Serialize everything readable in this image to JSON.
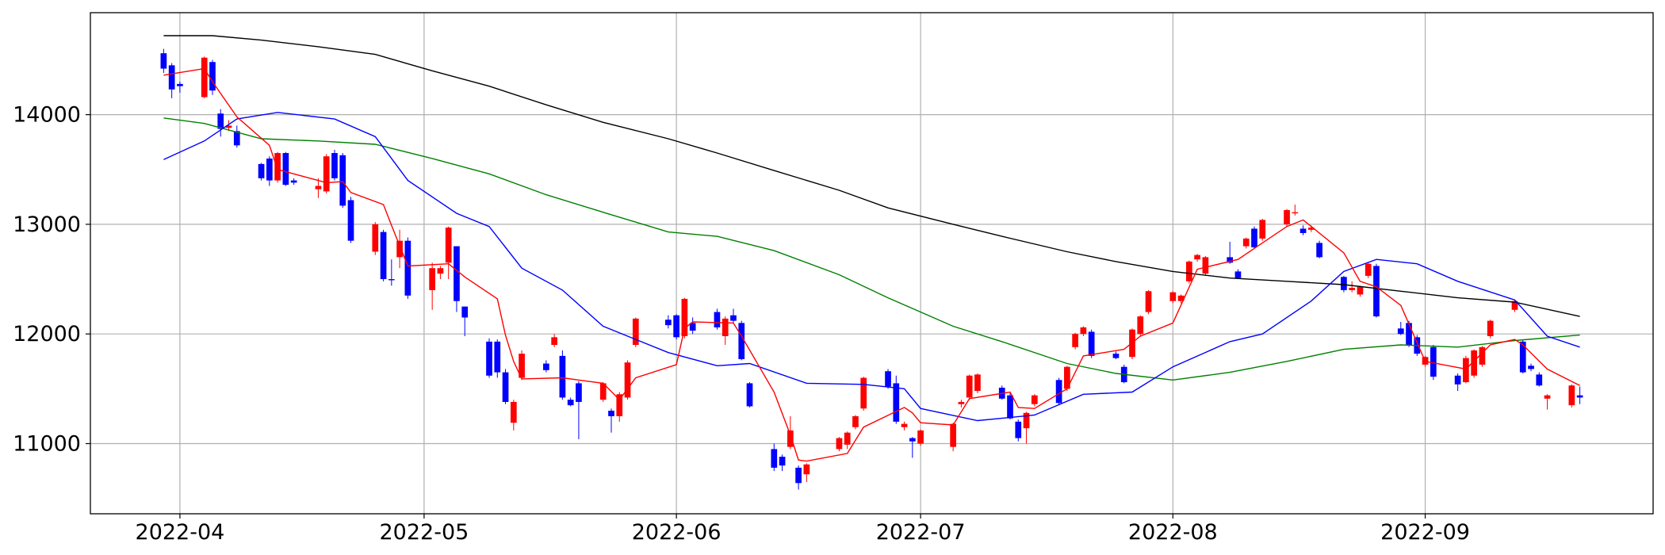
{
  "chart_data": {
    "type": "candlestick",
    "x": [
      "2022-03-30",
      "2022-03-31",
      "2022-04-01",
      "2022-04-04",
      "2022-04-05",
      "2022-04-06",
      "2022-04-07",
      "2022-04-08",
      "2022-04-11",
      "2022-04-12",
      "2022-04-13",
      "2022-04-14",
      "2022-04-15",
      "2022-04-18",
      "2022-04-19",
      "2022-04-20",
      "2022-04-21",
      "2022-04-22",
      "2022-04-25",
      "2022-04-26",
      "2022-04-27",
      "2022-04-28",
      "2022-04-29",
      "2022-05-02",
      "2022-05-03",
      "2022-05-04",
      "2022-05-05",
      "2022-05-06",
      "2022-05-09",
      "2022-05-10",
      "2022-05-11",
      "2022-05-12",
      "2022-05-13",
      "2022-05-16",
      "2022-05-17",
      "2022-05-18",
      "2022-05-19",
      "2022-05-20",
      "2022-05-23",
      "2022-05-24",
      "2022-05-25",
      "2022-05-26",
      "2022-05-27",
      "2022-05-31",
      "2022-06-01",
      "2022-06-02",
      "2022-06-03",
      "2022-06-06",
      "2022-06-07",
      "2022-06-08",
      "2022-06-09",
      "2022-06-10",
      "2022-06-13",
      "2022-06-14",
      "2022-06-15",
      "2022-06-16",
      "2022-06-17",
      "2022-06-21",
      "2022-06-22",
      "2022-06-23",
      "2022-06-24",
      "2022-06-27",
      "2022-06-28",
      "2022-06-29",
      "2022-06-30",
      "2022-07-01",
      "2022-07-05",
      "2022-07-06",
      "2022-07-07",
      "2022-07-08",
      "2022-07-11",
      "2022-07-12",
      "2022-07-13",
      "2022-07-14",
      "2022-07-15",
      "2022-07-18",
      "2022-07-19",
      "2022-07-20",
      "2022-07-21",
      "2022-07-22",
      "2022-07-25",
      "2022-07-26",
      "2022-07-27",
      "2022-07-28",
      "2022-07-29",
      "2022-08-01",
      "2022-08-02",
      "2022-08-03",
      "2022-08-04",
      "2022-08-05",
      "2022-08-08",
      "2022-08-09",
      "2022-08-10",
      "2022-08-11",
      "2022-08-12",
      "2022-08-15",
      "2022-08-16",
      "2022-08-17",
      "2022-08-18",
      "2022-08-19",
      "2022-08-22",
      "2022-08-23",
      "2022-08-24",
      "2022-08-25",
      "2022-08-26",
      "2022-08-29",
      "2022-08-30",
      "2022-08-31",
      "2022-09-01",
      "2022-09-02",
      "2022-09-05",
      "2022-09-06",
      "2022-09-07",
      "2022-09-08",
      "2022-09-09",
      "2022-09-12",
      "2022-09-13",
      "2022-09-14",
      "2022-09-15",
      "2022-09-16",
      "2022-09-19",
      "2022-09-20"
    ],
    "open": [
      14560,
      14450,
      14280,
      14160,
      14480,
      14010,
      13880,
      13850,
      13550,
      13600,
      13400,
      13650,
      13400,
      13320,
      13300,
      13650,
      13630,
      13220,
      12750,
      12930,
      12500,
      12700,
      12850,
      12400,
      12550,
      12650,
      12800,
      12250,
      11930,
      11930,
      11650,
      11190,
      11600,
      11730,
      11900,
      11800,
      11400,
      11550,
      11400,
      11300,
      11250,
      11420,
      11900,
      12130,
      12170,
      11980,
      12100,
      12200,
      11980,
      12170,
      12100,
      11550,
      10950,
      10880,
      10970,
      10780,
      10720,
      10950,
      10990,
      11150,
      11320,
      11660,
      11550,
      11150,
      11050,
      11000,
      10970,
      11360,
      11420,
      11480,
      11510,
      11440,
      11200,
      11140,
      11360,
      11580,
      11500,
      11880,
      12000,
      12020,
      11820,
      11700,
      11790,
      12000,
      12200,
      12300,
      12300,
      12480,
      12680,
      12550,
      12700,
      12570,
      12800,
      12960,
      12870,
      13000,
      13100,
      12960,
      12950,
      12830,
      12520,
      12400,
      12360,
      12530,
      12620,
      12050,
      12100,
      11970,
      11720,
      11880,
      11620,
      11560,
      11620,
      11720,
      11980,
      12220,
      11930,
      11710,
      11630,
      11410,
      11350,
      11440
    ],
    "high": [
      14600,
      14470,
      14300,
      14530,
      14500,
      14050,
      13950,
      13900,
      13560,
      13620,
      13660,
      13660,
      13420,
      13420,
      13640,
      13680,
      13650,
      13250,
      13020,
      12950,
      12680,
      12950,
      12880,
      12650,
      12620,
      12980,
      12800,
      12250,
      11960,
      11950,
      11680,
      11400,
      11850,
      11760,
      12000,
      11850,
      11420,
      11570,
      11560,
      11320,
      11470,
      11760,
      12150,
      12170,
      12180,
      12330,
      12150,
      12230,
      12160,
      12230,
      12120,
      11560,
      11000,
      10900,
      11250,
      10800,
      10820,
      11060,
      11110,
      11260,
      11610,
      11680,
      11620,
      11200,
      11060,
      11130,
      11190,
      11400,
      11630,
      11640,
      11530,
      11460,
      11220,
      11290,
      11450,
      11600,
      11710,
      12010,
      12070,
      12040,
      11840,
      11720,
      12050,
      12170,
      12400,
      12390,
      12360,
      12670,
      12730,
      12710,
      12840,
      12590,
      12880,
      12980,
      13050,
      13140,
      13180,
      12990,
      12990,
      12850,
      12530,
      12480,
      12440,
      12650,
      12640,
      12110,
      12120,
      11990,
      11800,
      11900,
      11640,
      11800,
      11860,
      11890,
      12130,
      12310,
      11950,
      11730,
      11650,
      11450,
      11540,
      11520
    ],
    "low": [
      14380,
      14150,
      14200,
      14150,
      14180,
      13800,
      13850,
      13700,
      13400,
      13350,
      13380,
      13350,
      13360,
      13240,
      13280,
      13400,
      13150,
      12830,
      12720,
      12480,
      12440,
      12600,
      12320,
      12220,
      12500,
      12500,
      12200,
      11980,
      11600,
      11600,
      11360,
      11120,
      11580,
      11650,
      11880,
      11400,
      11340,
      11040,
      11380,
      11100,
      11200,
      11400,
      11880,
      12050,
      11950,
      11960,
      12000,
      12040,
      11900,
      12100,
      11760,
      11330,
      10750,
      10750,
      10950,
      10580,
      10650,
      10930,
      10950,
      11130,
      11300,
      11500,
      11180,
      11120,
      10870,
      10980,
      10930,
      11330,
      11400,
      11460,
      11400,
      11220,
      11020,
      11000,
      11340,
      11350,
      11480,
      11860,
      11980,
      11780,
      11770,
      11550,
      11770,
      11980,
      12180,
      12280,
      12280,
      12460,
      12660,
      12530,
      12640,
      12500,
      12780,
      12780,
      12850,
      12980,
      13080,
      12900,
      12930,
      12690,
      12380,
      12380,
      12340,
      12510,
      12150,
      11990,
      11880,
      11800,
      11700,
      11580,
      11480,
      11550,
      11600,
      11700,
      11960,
      12200,
      11640,
      11660,
      11520,
      11310,
      11330,
      11360
    ],
    "close": [
      14420,
      14230,
      14260,
      14520,
      14220,
      13870,
      13900,
      13720,
      13420,
      13400,
      13650,
      13360,
      13380,
      13350,
      13620,
      13420,
      13170,
      12850,
      13000,
      12500,
      12490,
      12850,
      12350,
      12600,
      12600,
      12970,
      12300,
      12150,
      11620,
      11650,
      11380,
      11380,
      11820,
      11670,
      11970,
      11420,
      11350,
      11380,
      11550,
      11250,
      11450,
      11740,
      12140,
      12080,
      11970,
      12320,
      12030,
      12060,
      12140,
      12120,
      11770,
      11340,
      10780,
      10800,
      11120,
      10640,
      10810,
      11050,
      11100,
      11250,
      11600,
      11520,
      11200,
      11180,
      11020,
      11120,
      11180,
      11380,
      11620,
      11630,
      11410,
      11230,
      11050,
      11280,
      11440,
      11370,
      11700,
      12000,
      12060,
      11800,
      11780,
      11560,
      12040,
      12160,
      12390,
      12380,
      12350,
      12660,
      12720,
      12700,
      12650,
      12510,
      12870,
      12790,
      13040,
      13130,
      13110,
      12920,
      12970,
      12700,
      12400,
      12420,
      12430,
      12640,
      12160,
      12000,
      11900,
      11820,
      11790,
      11610,
      11540,
      11780,
      11850,
      11880,
      12120,
      12300,
      11650,
      11680,
      11530,
      11440,
      11530,
      11420
    ],
    "up_color": "#ff0000",
    "down_color": "#0000ff",
    "lines": [
      {
        "color": "#000000",
        "x": [
          "2022-03-30",
          "2022-04-05",
          "2022-04-11",
          "2022-04-18",
          "2022-04-25",
          "2022-05-02",
          "2022-05-09",
          "2022-05-16",
          "2022-05-23",
          "2022-05-31",
          "2022-06-06",
          "2022-06-13",
          "2022-06-21",
          "2022-06-27",
          "2022-07-05",
          "2022-07-11",
          "2022-07-19",
          "2022-07-25",
          "2022-08-01",
          "2022-08-08",
          "2022-08-15",
          "2022-08-22",
          "2022-08-29",
          "2022-09-05",
          "2022-09-12",
          "2022-09-20"
        ],
        "values": [
          14720,
          14720,
          14680,
          14620,
          14550,
          14400,
          14260,
          14090,
          13930,
          13780,
          13650,
          13490,
          13310,
          13150,
          13000,
          12890,
          12750,
          12660,
          12570,
          12510,
          12480,
          12450,
          12390,
          12330,
          12290,
          12160
        ]
      },
      {
        "color": "#008000",
        "x": [
          "2022-03-30",
          "2022-04-04",
          "2022-04-11",
          "2022-04-18",
          "2022-04-25",
          "2022-05-02",
          "2022-05-09",
          "2022-05-16",
          "2022-05-23",
          "2022-05-31",
          "2022-06-06",
          "2022-06-13",
          "2022-06-21",
          "2022-06-27",
          "2022-07-05",
          "2022-07-11",
          "2022-07-19",
          "2022-07-25",
          "2022-08-01",
          "2022-08-08",
          "2022-08-15",
          "2022-08-22",
          "2022-08-29",
          "2022-09-05",
          "2022-09-12",
          "2022-09-20"
        ],
        "values": [
          13970,
          13920,
          13780,
          13760,
          13730,
          13600,
          13460,
          13270,
          13110,
          12930,
          12890,
          12760,
          12540,
          12330,
          12070,
          11930,
          11730,
          11640,
          11580,
          11650,
          11750,
          11860,
          11900,
          11880,
          11940,
          11990
        ]
      },
      {
        "color": "#0000ff",
        "x": [
          "2022-03-30",
          "2022-04-04",
          "2022-04-08",
          "2022-04-13",
          "2022-04-20",
          "2022-04-25",
          "2022-04-29",
          "2022-05-05",
          "2022-05-09",
          "2022-05-13",
          "2022-05-18",
          "2022-05-23",
          "2022-05-27",
          "2022-05-31",
          "2022-06-06",
          "2022-06-10",
          "2022-06-17",
          "2022-06-24",
          "2022-06-29",
          "2022-07-01",
          "2022-07-08",
          "2022-07-15",
          "2022-07-21",
          "2022-07-27",
          "2022-08-01",
          "2022-08-08",
          "2022-08-12",
          "2022-08-18",
          "2022-08-22",
          "2022-08-26",
          "2022-08-31",
          "2022-09-05",
          "2022-09-12",
          "2022-09-16",
          "2022-09-20"
        ],
        "values": [
          13590,
          13760,
          13960,
          14020,
          13960,
          13800,
          13400,
          13100,
          12980,
          12600,
          12400,
          12070,
          11950,
          11830,
          11710,
          11730,
          11550,
          11540,
          11500,
          11320,
          11210,
          11260,
          11450,
          11470,
          11700,
          11930,
          12000,
          12300,
          12570,
          12680,
          12640,
          12480,
          12310,
          11980,
          11880
        ]
      },
      {
        "color": "#ff0000",
        "x": [
          "2022-03-30",
          "2022-04-04",
          "2022-04-05",
          "2022-04-08",
          "2022-04-12",
          "2022-04-13",
          "2022-04-19",
          "2022-04-21",
          "2022-04-22",
          "2022-04-26",
          "2022-04-27",
          "2022-04-29",
          "2022-05-04",
          "2022-05-06",
          "2022-05-10",
          "2022-05-11",
          "2022-05-12",
          "2022-05-13",
          "2022-05-18",
          "2022-05-20",
          "2022-05-23",
          "2022-05-25",
          "2022-05-27",
          "2022-06-01",
          "2022-06-02",
          "2022-06-03",
          "2022-06-08",
          "2022-06-09",
          "2022-06-13",
          "2022-06-15",
          "2022-06-16",
          "2022-06-17",
          "2022-06-22",
          "2022-06-24",
          "2022-06-29",
          "2022-06-30",
          "2022-07-01",
          "2022-07-05",
          "2022-07-07",
          "2022-07-12",
          "2022-07-13",
          "2022-07-15",
          "2022-07-19",
          "2022-07-21",
          "2022-07-26",
          "2022-07-28",
          "2022-08-01",
          "2022-08-04",
          "2022-08-09",
          "2022-08-11",
          "2022-08-15",
          "2022-08-17",
          "2022-08-22",
          "2022-08-24",
          "2022-08-26",
          "2022-08-29",
          "2022-09-01",
          "2022-09-06",
          "2022-09-09",
          "2022-09-12",
          "2022-09-13",
          "2022-09-16",
          "2022-09-20"
        ],
        "values": [
          14360,
          14420,
          14300,
          13980,
          13720,
          13500,
          13380,
          13390,
          13290,
          13180,
          12990,
          12620,
          12640,
          12520,
          12320,
          11990,
          11750,
          11590,
          11600,
          11580,
          11550,
          11400,
          11600,
          11720,
          12050,
          12110,
          12100,
          11980,
          11470,
          11080,
          10850,
          10840,
          10910,
          11150,
          11330,
          11280,
          11190,
          11170,
          11410,
          11470,
          11330,
          11320,
          11500,
          11800,
          11860,
          11980,
          12100,
          12590,
          12680,
          12780,
          12980,
          13040,
          12740,
          12480,
          12430,
          12260,
          11750,
          11680,
          11900,
          11950,
          11900,
          11680,
          11530
        ]
      }
    ],
    "xlim": [
      "2022-03-21",
      "2022-09-29"
    ],
    "ylim": [
      10360,
      14930
    ],
    "xticks": [
      {
        "value": "2022-04-01",
        "label": "2022-04"
      },
      {
        "value": "2022-05-01",
        "label": "2022-05"
      },
      {
        "value": "2022-06-01",
        "label": "2022-06"
      },
      {
        "value": "2022-07-01",
        "label": "2022-07"
      },
      {
        "value": "2022-08-01",
        "label": "2022-08"
      },
      {
        "value": "2022-09-01",
        "label": "2022-09"
      }
    ],
    "yticks": [
      11000,
      12000,
      13000,
      14000
    ],
    "grid": true
  }
}
